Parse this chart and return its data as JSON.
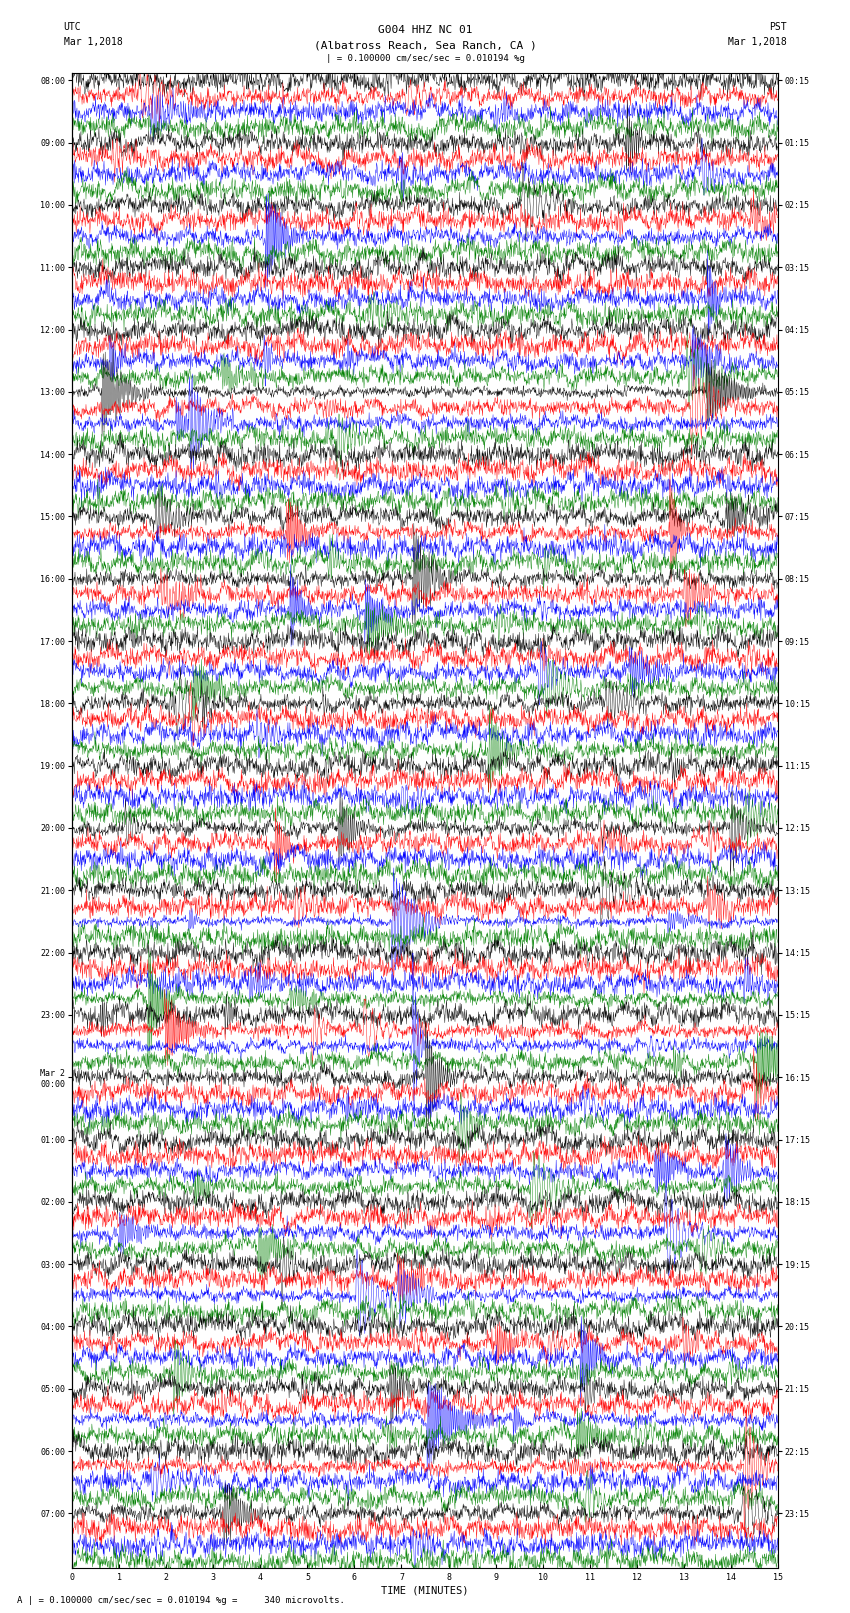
{
  "title_line1": "G004 HHZ NC 01",
  "title_line2": "(Albatross Reach, Sea Ranch, CA )",
  "scale_text": "| = 0.100000 cm/sec/sec = 0.010194 %g",
  "footer_text": "A | = 0.100000 cm/sec/sec = 0.010194 %g =     340 microvolts.",
  "utc_label": "UTC",
  "utc_date": "Mar 1,2018",
  "pst_label": "PST",
  "pst_date": "Mar 1,2018",
  "xlabel": "TIME (MINUTES)",
  "xlim": [
    0,
    15
  ],
  "xticks": [
    0,
    1,
    2,
    3,
    4,
    5,
    6,
    7,
    8,
    9,
    10,
    11,
    12,
    13,
    14,
    15
  ],
  "left_hour_labels": [
    "08:00",
    "09:00",
    "10:00",
    "11:00",
    "12:00",
    "13:00",
    "14:00",
    "15:00",
    "16:00",
    "17:00",
    "18:00",
    "19:00",
    "20:00",
    "21:00",
    "22:00",
    "23:00",
    "Mar 2\n00:00",
    "01:00",
    "02:00",
    "03:00",
    "04:00",
    "05:00",
    "06:00",
    "07:00"
  ],
  "right_hour_labels": [
    "00:15",
    "01:15",
    "02:15",
    "03:15",
    "04:15",
    "05:15",
    "06:15",
    "07:15",
    "08:15",
    "09:15",
    "10:15",
    "11:15",
    "12:15",
    "13:15",
    "14:15",
    "15:15",
    "16:15",
    "17:15",
    "18:15",
    "19:15",
    "20:15",
    "21:15",
    "22:15",
    "23:15"
  ],
  "trace_colors": [
    "black",
    "red",
    "blue",
    "green"
  ],
  "n_hours": 24,
  "traces_per_hour": 4,
  "n_points": 1800,
  "fig_width": 8.5,
  "fig_height": 16.13,
  "dpi": 100,
  "background_color": "white",
  "title_fontsize": 8,
  "label_fontsize": 7,
  "tick_fontsize": 6
}
